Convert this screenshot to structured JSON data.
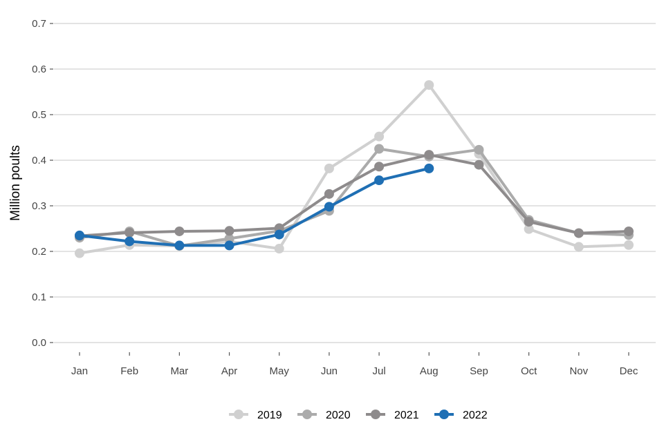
{
  "chart_data": {
    "type": "line",
    "title": "",
    "xlabel": "",
    "ylabel": "Million poults",
    "categories": [
      "Jan",
      "Feb",
      "Mar",
      "Apr",
      "May",
      "Jun",
      "Jul",
      "Aug",
      "Sep",
      "Oct",
      "Nov",
      "Dec"
    ],
    "ylim": [
      0,
      0.7
    ],
    "yticks": [
      "0.0",
      "0.1",
      "0.2",
      "0.3",
      "0.4",
      "0.5",
      "0.6",
      "0.7"
    ],
    "grid": "horizontal",
    "legend_position": "bottom",
    "series": [
      {
        "name": "2019",
        "color": "#d0d0d0",
        "values": [
          0.196,
          0.214,
          0.212,
          0.222,
          0.206,
          0.382,
          0.452,
          0.565,
          0.414,
          0.249,
          0.21,
          0.214
        ]
      },
      {
        "name": "2020",
        "color": "#ababab",
        "values": [
          0.23,
          0.244,
          0.212,
          0.228,
          0.245,
          0.289,
          0.425,
          0.408,
          0.423,
          0.269,
          0.24,
          0.236
        ]
      },
      {
        "name": "2021",
        "color": "#8e8b8c",
        "values": [
          0.234,
          0.241,
          0.244,
          0.245,
          0.251,
          0.326,
          0.386,
          0.412,
          0.39,
          0.265,
          0.24,
          0.244
        ]
      },
      {
        "name": "2022",
        "color": "#1f6fb4",
        "values": [
          0.235,
          0.222,
          0.213,
          0.213,
          0.237,
          0.298,
          0.356,
          0.382,
          null,
          null,
          null,
          null
        ]
      }
    ]
  }
}
